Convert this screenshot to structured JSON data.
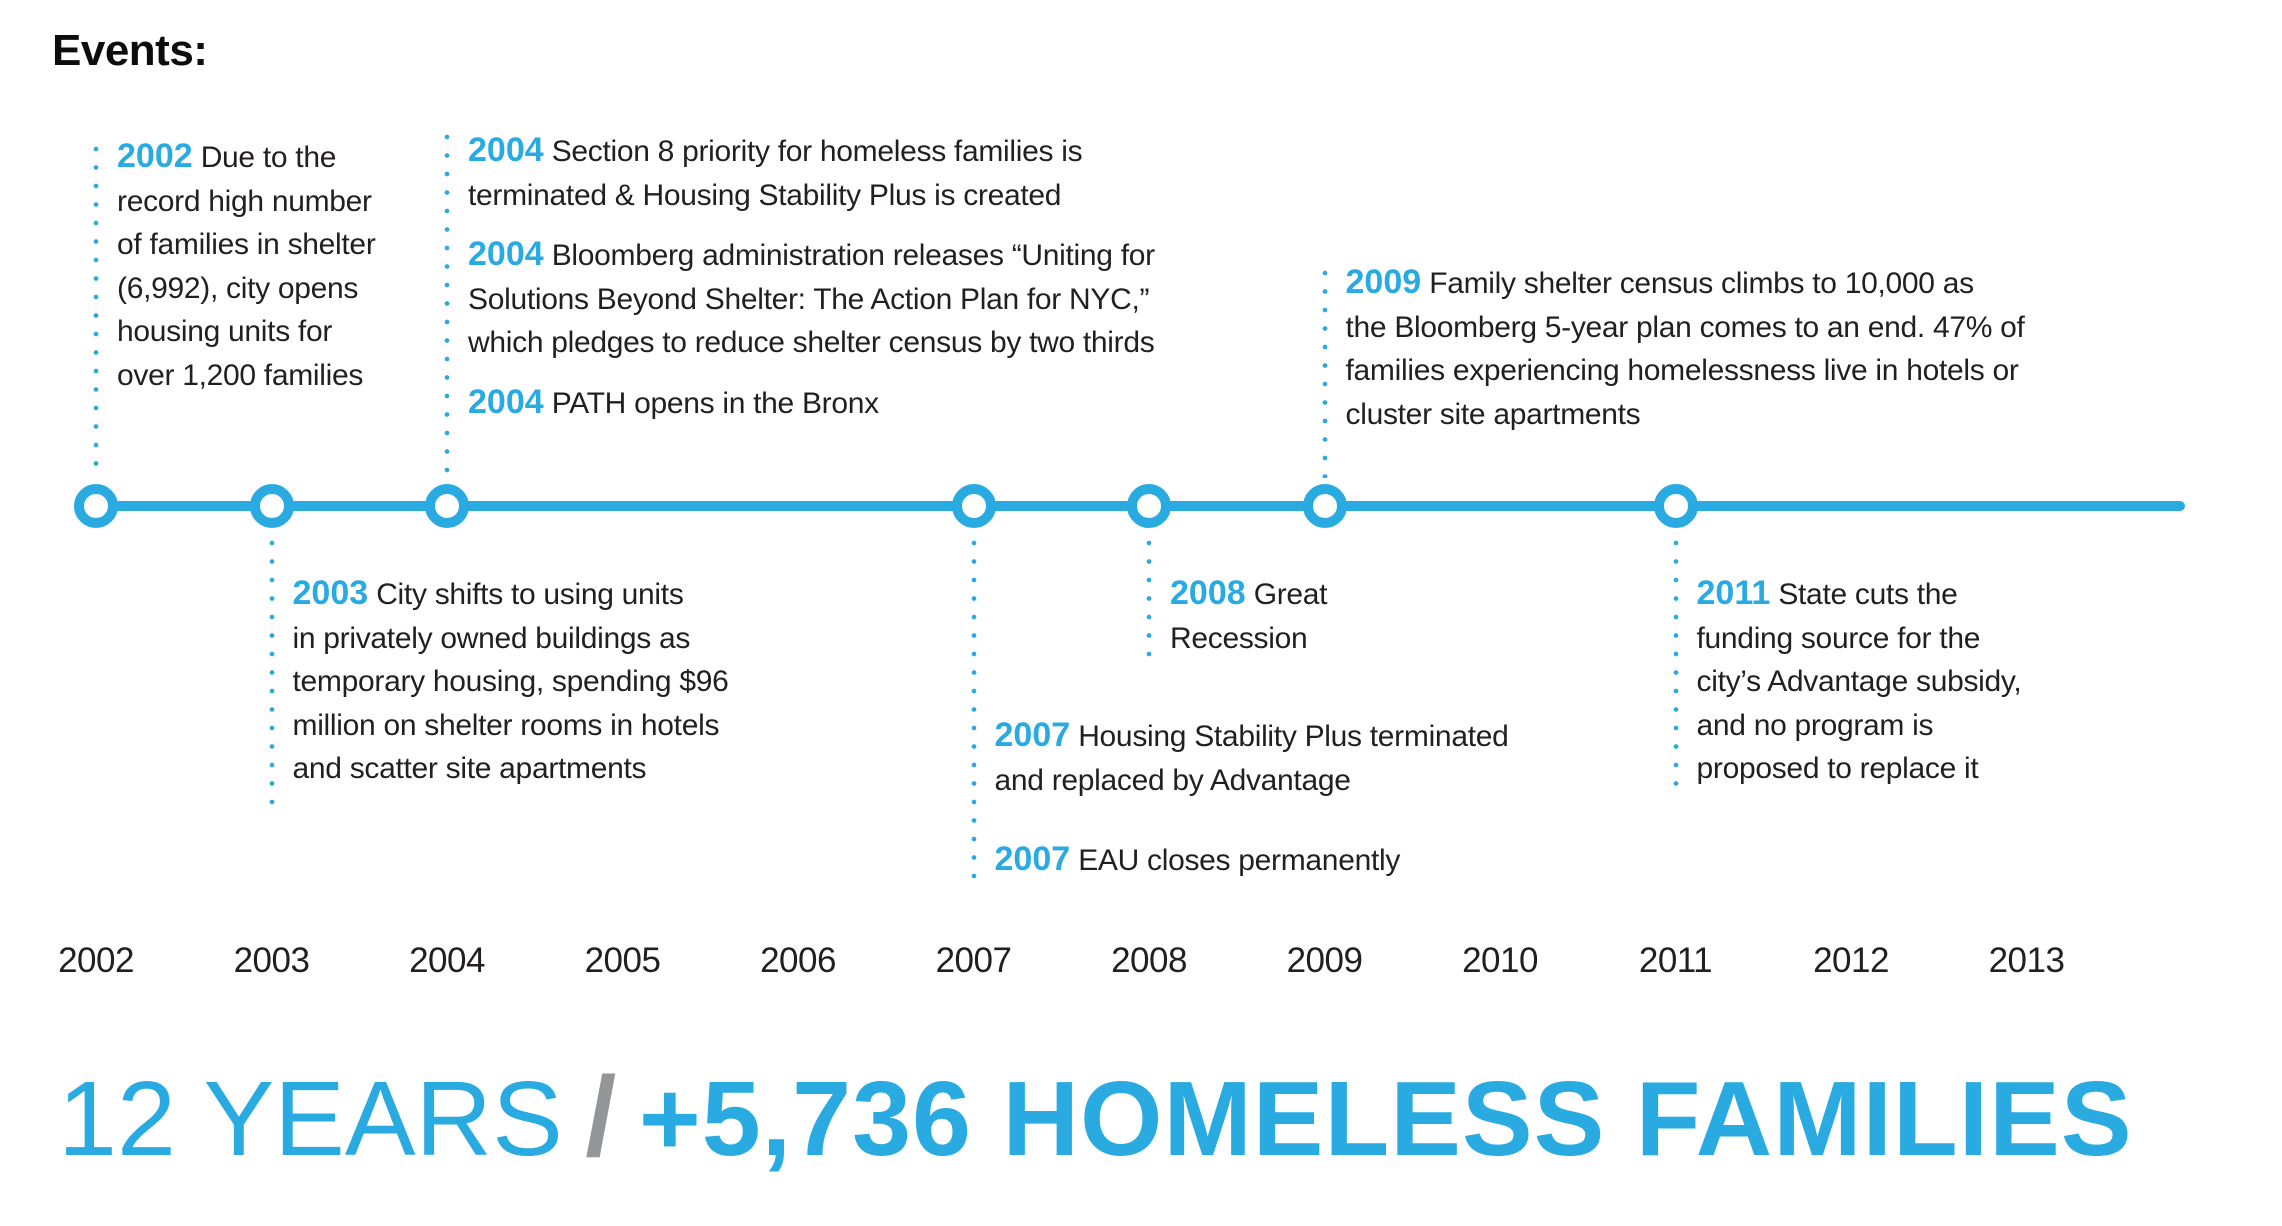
{
  "header": {
    "events_label": "Events:"
  },
  "colors": {
    "accent": "#29ABE2",
    "text_dark": "#231F20",
    "separator_gray": "#939598"
  },
  "timeline": {
    "axis_years": [
      "2002",
      "2003",
      "2004",
      "2005",
      "2006",
      "2007",
      "2008",
      "2009",
      "2010",
      "2011",
      "2012",
      "2013"
    ],
    "node_years": [
      "2002",
      "2003",
      "2004",
      "2007",
      "2008",
      "2009",
      "2011"
    ]
  },
  "event_groups": [
    {
      "id": "2002-above",
      "anchor_year": "2002",
      "side": "above",
      "paragraphs": [
        {
          "year": "2002",
          "lines": [
            "Due to the",
            "record high number",
            "of families in shelter",
            "(6,992), city opens",
            "housing units for",
            "over 1,200 families"
          ]
        }
      ]
    },
    {
      "id": "2004-above",
      "anchor_year": "2004",
      "side": "above",
      "paragraphs": [
        {
          "year": "2004",
          "lines": [
            "Section 8 priority for homeless families is",
            "terminated & Housing Stability Plus is created"
          ]
        },
        {
          "year": "2004",
          "lines": [
            "Bloomberg administration releases “Uniting for",
            "Solutions Beyond Shelter: The Action Plan for NYC,”",
            "which pledges to reduce shelter census by two thirds"
          ]
        },
        {
          "year": "2004",
          "lines": [
            "PATH opens in the Bronx"
          ]
        }
      ]
    },
    {
      "id": "2009-above",
      "anchor_year": "2009",
      "side": "above",
      "paragraphs": [
        {
          "year": "2009",
          "lines": [
            "Family shelter census climbs to 10,000 as",
            "the Bloomberg 5-year plan comes to an end. 47% of",
            "families experiencing homelessness live in hotels or",
            "cluster site apartments"
          ]
        }
      ]
    },
    {
      "id": "2003-below",
      "anchor_year": "2003",
      "side": "below",
      "paragraphs": [
        {
          "year": "2003",
          "lines": [
            "City shifts to using units",
            "in privately owned buildings as",
            "temporary housing, spending $96",
            "million on shelter rooms in hotels",
            "and scatter site apartments"
          ]
        }
      ]
    },
    {
      "id": "2007-below",
      "anchor_year": "2007",
      "side": "below",
      "paragraphs": [
        {
          "year": "2007",
          "lines": [
            "Housing Stability Plus terminated",
            "and replaced by Advantage"
          ]
        },
        {
          "year": "2007",
          "lines": [
            "EAU closes permanently"
          ]
        }
      ]
    },
    {
      "id": "2008-below",
      "anchor_year": "2008",
      "side": "below",
      "paragraphs": [
        {
          "year": "2008",
          "lines": [
            "Great",
            "Recession"
          ]
        }
      ]
    },
    {
      "id": "2011-below",
      "anchor_year": "2011",
      "side": "below",
      "paragraphs": [
        {
          "year": "2011",
          "lines": [
            "State cuts the",
            "funding source for the",
            "city’s Advantage subsidy,",
            "and no program is",
            "proposed to replace it"
          ]
        }
      ]
    }
  ],
  "footer": {
    "headline_left": "12 YEARS",
    "headline_separator": "/",
    "headline_right": "+5,736 HOMELESS FAMILIES"
  }
}
